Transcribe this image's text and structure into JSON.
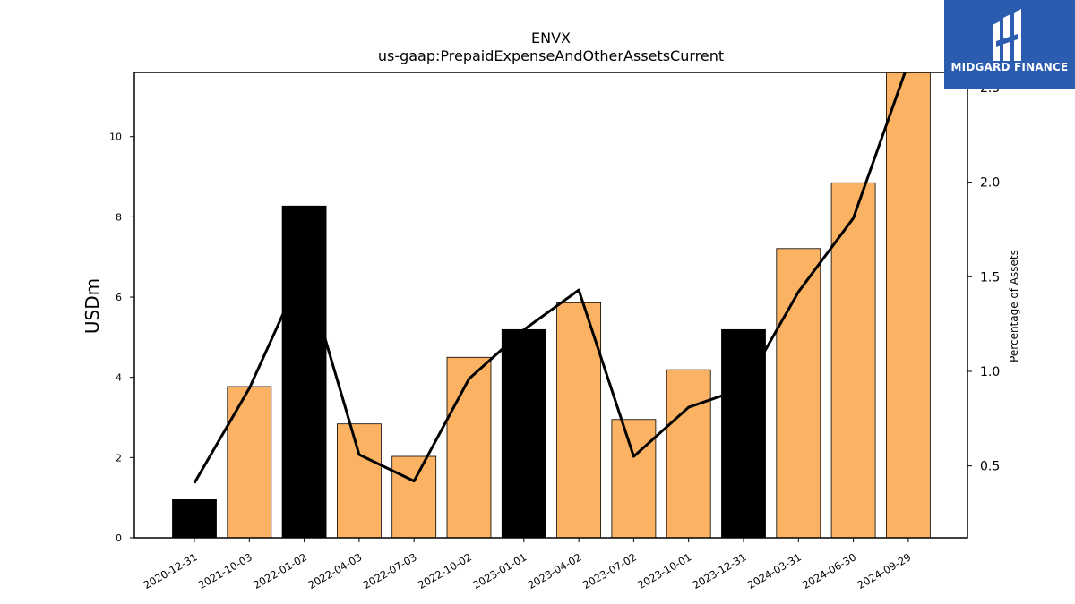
{
  "chart_data": {
    "type": "bar",
    "title": "ENVX",
    "subtitle": "us-gaap:PrepaidExpenseAndOtherAssetsCurrent",
    "ylabel": "USDm",
    "y2label": "Percentage of Assets",
    "categories": [
      "2020-12-31",
      "2021-10-03",
      "2022-01-02",
      "2022-04-03",
      "2022-07-03",
      "2022-10-02",
      "2023-01-01",
      "2023-04-02",
      "2023-07-02",
      "2023-10-01",
      "2023-12-31",
      "2024-03-31",
      "2024-06-30",
      "2024-09-29"
    ],
    "bar_series": {
      "values": [
        0.95,
        3.77,
        8.27,
        2.84,
        2.03,
        4.5,
        5.19,
        5.86,
        2.95,
        4.19,
        5.19,
        7.21,
        8.85,
        11.65
      ],
      "highlight": [
        true,
        false,
        true,
        false,
        false,
        false,
        true,
        false,
        false,
        false,
        true,
        false,
        false,
        false
      ]
    },
    "line_series": {
      "values": [
        0.41,
        0.91,
        1.55,
        0.56,
        0.42,
        0.96,
        1.22,
        1.43,
        0.55,
        0.81,
        0.91,
        1.42,
        1.81,
        2.63
      ]
    },
    "ylim": [
      0,
      11.6
    ],
    "y2lim": [
      0.12,
      2.58
    ],
    "yticks": [
      "0",
      "2",
      "4",
      "6",
      "8",
      "10"
    ],
    "y2ticks": [
      "0.5",
      "1.0",
      "1.5",
      "2.0",
      "2.5"
    ],
    "colors": {
      "bar": "#fbb263",
      "highlight_bar": "#000000",
      "line": "#000000",
      "logo_bg": "#2b5cb0"
    }
  },
  "logo": {
    "text": "MIDGARD FINANCE"
  }
}
